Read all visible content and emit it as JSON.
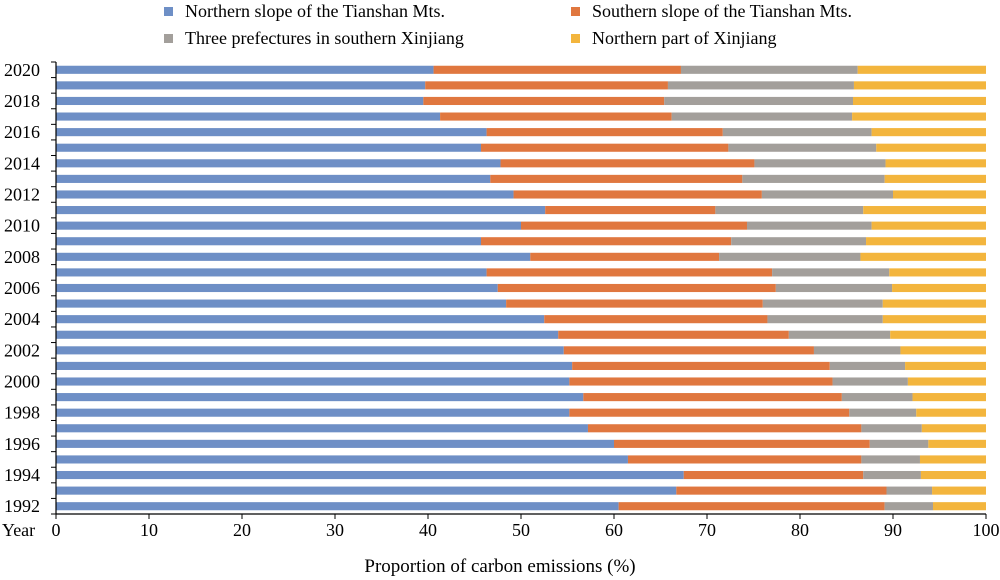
{
  "chart_data": {
    "type": "bar",
    "orientation": "horizontal",
    "stacked": true,
    "title": "",
    "xlabel": "Proportion of carbon emissions (%)",
    "ylabel": "Year",
    "xlim": [
      0,
      100
    ],
    "x_ticks": [
      "0",
      "10",
      "20",
      "30",
      "40",
      "50",
      "60",
      "70",
      "80",
      "90",
      "100"
    ],
    "y_tick_labels": [
      "1992",
      "1994",
      "1996",
      "1998",
      "2000",
      "2002",
      "2004",
      "2006",
      "2008",
      "2010",
      "2012",
      "2014",
      "2016",
      "2018",
      "2020"
    ],
    "grid": false,
    "legend_position": "top",
    "categories": [
      "1992",
      "1993",
      "1994",
      "1995",
      "1996",
      "1997",
      "1998",
      "1999",
      "2000",
      "2001",
      "2002",
      "2003",
      "2004",
      "2005",
      "2006",
      "2007",
      "2008",
      "2009",
      "2010",
      "2011",
      "2012",
      "2013",
      "2014",
      "2015",
      "2016",
      "2017",
      "2018",
      "2019",
      "2020"
    ],
    "series": [
      {
        "name": "Northern slope of the Tianshan Mts.",
        "color": "#6e8fc6",
        "values": [
          60.5,
          66.7,
          67.5,
          61.5,
          60.0,
          57.2,
          55.2,
          56.7,
          55.2,
          55.5,
          54.6,
          54.0,
          52.5,
          48.4,
          47.5,
          46.3,
          51.0,
          45.7,
          50.0,
          52.6,
          49.2,
          46.7,
          47.8,
          45.7,
          46.3,
          41.3,
          39.5,
          39.7,
          40.6
        ]
      },
      {
        "name": "Southern slope of the Tianshan Mts.",
        "color": "#e0773f",
        "values": [
          28.6,
          22.6,
          19.3,
          25.1,
          27.5,
          29.4,
          30.1,
          27.8,
          28.3,
          27.7,
          26.9,
          24.8,
          24.0,
          27.6,
          29.9,
          30.7,
          20.3,
          26.9,
          24.3,
          18.3,
          26.7,
          27.1,
          27.3,
          26.6,
          25.4,
          24.9,
          25.9,
          26.1,
          26.6
        ]
      },
      {
        "name": "Three prefectures in southern Xinjiang",
        "color": "#a39f9b",
        "values": [
          5.2,
          4.9,
          6.2,
          6.3,
          6.3,
          6.5,
          7.2,
          7.6,
          8.1,
          8.1,
          9.3,
          10.9,
          12.4,
          12.9,
          12.5,
          12.6,
          15.2,
          14.5,
          13.4,
          15.9,
          14.1,
          15.3,
          14.1,
          15.9,
          16.0,
          19.4,
          20.3,
          20.0,
          19.0
        ]
      },
      {
        "name": "Northern part of Xinjiang",
        "color": "#f3b53d",
        "values": [
          5.7,
          5.8,
          7.0,
          7.1,
          6.2,
          6.9,
          7.5,
          7.9,
          8.4,
          8.7,
          9.2,
          10.3,
          11.1,
          11.1,
          10.1,
          10.4,
          13.5,
          12.9,
          12.3,
          13.2,
          10.0,
          10.9,
          10.8,
          11.8,
          12.3,
          14.4,
          14.3,
          14.2,
          13.8
        ]
      }
    ]
  }
}
